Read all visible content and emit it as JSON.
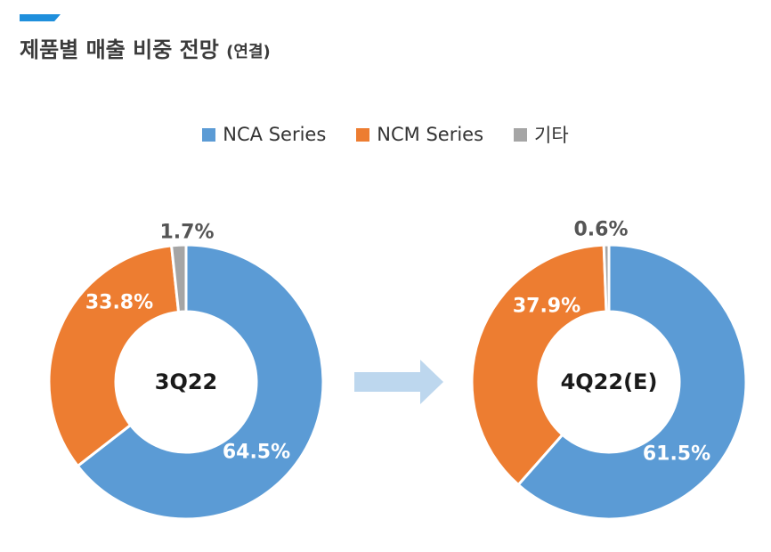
{
  "header": {
    "title": "제품별 매출 비중 전망",
    "subtitle": "(연결)"
  },
  "colors": {
    "accent": "#1f8fdc",
    "nca": "#5b9bd5",
    "ncm": "#ed7d31",
    "other": "#a5a5a5",
    "arrow": "#bdd7ee"
  },
  "chart_data": [
    {
      "type": "pie",
      "center_label": "3Q22",
      "categories": [
        "NCA Series",
        "NCM Series",
        "기타"
      ],
      "values": [
        64.5,
        33.8,
        1.7
      ],
      "labels": [
        "64.5%",
        "33.8%",
        "1.7%"
      ],
      "legend": [
        "NCA Series",
        "NCM Series",
        "기타"
      ],
      "legend_position": "top"
    },
    {
      "type": "pie",
      "center_label": "4Q22(E)",
      "categories": [
        "NCA Series",
        "NCM Series",
        "기타"
      ],
      "values": [
        61.5,
        37.9,
        0.6
      ],
      "labels": [
        "61.5%",
        "37.9%",
        "0.6%"
      ],
      "legend": [
        "NCA Series",
        "NCM Series",
        "기타"
      ],
      "legend_position": "top"
    }
  ]
}
